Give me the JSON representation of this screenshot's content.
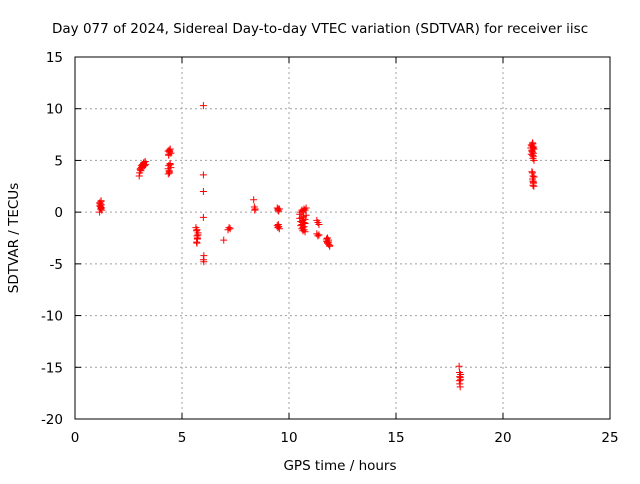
{
  "chart_data": {
    "type": "scatter",
    "title": "Day 077 of 2024, Sidereal Day-to-day VTEC variation (SDTVAR) for receiver iisc",
    "xlabel": "GPS time / hours",
    "ylabel": "SDTVAR / TECUs",
    "xlim": [
      0,
      25
    ],
    "ylim": [
      -20,
      15
    ],
    "xticks": [
      0,
      5,
      10,
      15,
      20,
      25
    ],
    "yticks": [
      -20,
      -15,
      -10,
      -5,
      0,
      5,
      10,
      15
    ],
    "xtick_labels": [
      "0",
      "5",
      "10",
      "15",
      "20",
      "25"
    ],
    "ytick_labels": [
      "-20",
      "-15",
      "-10",
      "-5",
      "0",
      "5",
      "10",
      "15"
    ],
    "grid": true,
    "marker": "+",
    "color": "#ff0000",
    "series": [
      {
        "name": "SDTVAR",
        "x": [
          1.15,
          1.17,
          1.19,
          1.21,
          1.23,
          1.25,
          1.15,
          1.18,
          1.2,
          1.22,
          1.24,
          1.16,
          3.0,
          3.02,
          3.05,
          3.08,
          3.1,
          3.12,
          3.15,
          3.18,
          3.2,
          3.22,
          3.25,
          3.28,
          3.3,
          3.05,
          3.1,
          3.15,
          3.2,
          4.35,
          4.38,
          4.4,
          4.42,
          4.45,
          4.48,
          4.35,
          4.38,
          4.4,
          4.42,
          4.45,
          4.48,
          4.36,
          4.4,
          4.44,
          4.38,
          4.42,
          5.65,
          5.68,
          5.7,
          5.72,
          5.75,
          5.68,
          5.7,
          5.72,
          5.75,
          5.7,
          6.0,
          6.0,
          6.0,
          6.0,
          6.02,
          6.0,
          6.02,
          6.95,
          7.15,
          7.2,
          7.25,
          8.35,
          8.38,
          8.4,
          8.42,
          9.45,
          9.48,
          9.5,
          9.52,
          9.55,
          9.45,
          9.48,
          9.5,
          9.52,
          9.55,
          10.5,
          10.55,
          10.6,
          10.65,
          10.7,
          10.75,
          10.8,
          10.5,
          10.55,
          10.6,
          10.65,
          10.7,
          10.75,
          10.8,
          10.55,
          10.6,
          10.65,
          10.7,
          10.75,
          10.6,
          10.65,
          10.7,
          10.75,
          10.62,
          10.68,
          11.3,
          11.35,
          11.4,
          11.3,
          11.35,
          11.4,
          11.75,
          11.8,
          11.85,
          11.9,
          11.75,
          11.8,
          11.85,
          11.9,
          11.8,
          11.85,
          17.95,
          17.97,
          18.0,
          18.02,
          17.96,
          17.98,
          18.0,
          18.02,
          17.98,
          21.3,
          21.32,
          21.35,
          21.38,
          21.4,
          21.42,
          21.45,
          21.32,
          21.35,
          21.38,
          21.4,
          21.42,
          21.35,
          21.38,
          21.4,
          21.42,
          21.45,
          21.38,
          21.4,
          21.35,
          21.38,
          21.4,
          21.42,
          21.45,
          21.4,
          21.42,
          21.44
        ],
        "y": [
          0.9,
          0.6,
          0.3,
          1.0,
          0.7,
          0.2,
          0.0,
          0.8,
          0.5,
          1.1,
          0.4,
          0.6,
          3.5,
          3.8,
          4.2,
          4.0,
          4.5,
          4.3,
          4.6,
          4.4,
          4.7,
          4.8,
          4.5,
          4.9,
          4.6,
          4.1,
          4.3,
          4.4,
          4.6,
          5.9,
          5.6,
          6.0,
          5.8,
          6.1,
          5.7,
          4.2,
          4.5,
          4.0,
          3.8,
          4.6,
          4.3,
          3.7,
          3.9,
          4.7,
          5.5,
          5.9,
          -1.5,
          -1.8,
          -2.3,
          -2.6,
          -2.0,
          -2.9,
          -3.0,
          -2.5,
          -2.2,
          -1.7,
          10.3,
          3.6,
          2.0,
          -0.5,
          -4.2,
          -4.6,
          -4.8,
          -2.7,
          -1.7,
          -1.5,
          -1.6,
          1.2,
          0.5,
          0.2,
          0.3,
          0.4,
          0.2,
          0.3,
          0.1,
          0.3,
          -1.3,
          -1.5,
          -1.2,
          -1.4,
          -1.6,
          -0.2,
          0.0,
          0.2,
          0.1,
          0.3,
          0.2,
          0.4,
          -0.6,
          -0.9,
          -1.2,
          -1.5,
          -1.0,
          -0.7,
          -0.3,
          -1.3,
          -1.6,
          -1.8,
          -1.4,
          -1.1,
          -0.5,
          -0.8,
          -1.7,
          -1.9,
          -1.0,
          -0.4,
          -0.8,
          -1.0,
          -1.2,
          -2.1,
          -2.3,
          -2.2,
          -2.6,
          -2.9,
          -3.1,
          -3.3,
          -2.8,
          -3.0,
          -2.7,
          -3.2,
          -2.5,
          -2.9,
          -14.9,
          -15.5,
          -16.0,
          -15.7,
          -16.3,
          -16.6,
          -16.9,
          -16.2,
          -15.9,
          6.2,
          6.5,
          6.0,
          5.8,
          6.6,
          6.3,
          6.1,
          5.6,
          5.9,
          5.5,
          5.2,
          5.7,
          6.4,
          6.7,
          6.2,
          5.4,
          5.0,
          3.8,
          3.5,
          3.9,
          3.2,
          3.0,
          2.8,
          3.4,
          2.6,
          2.9,
          2.5
        ]
      }
    ]
  }
}
